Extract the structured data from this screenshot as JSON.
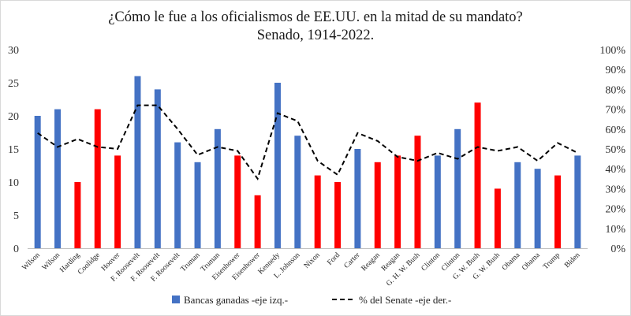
{
  "chart_data": {
    "type": "bar+line",
    "title_line1": "¿Cómo le fue a los oficialismos de EE.UU. en la mitad de su mandato?",
    "title_line2": "Senado, 1914-2022.",
    "categories": [
      "Wilson",
      "Wilson",
      "Harding",
      "Coolidge",
      "Hoover",
      "F. Roosevelt",
      "F. Roosevelt",
      "F. Roosevelt",
      "Truman",
      "Truman",
      "Eisenhower",
      "Eisenhower",
      "Kennedy",
      "L. Johnson",
      "Nixon",
      "Ford",
      "Carter",
      "Reagan",
      "Reagan",
      "G. H. W. Bush",
      "Clinton",
      "Clinton",
      "G. W. Bush",
      "G. W. Bush",
      "Obama",
      "Obama",
      "Trump",
      "Biden"
    ],
    "series": [
      {
        "name": "Bancas ganadas -eje izq.-",
        "axis": "left",
        "type": "bar",
        "values": [
          20,
          21,
          10,
          21,
          14,
          26,
          24,
          16,
          13,
          18,
          14,
          8,
          25,
          17,
          11,
          10,
          15,
          13,
          14,
          17,
          14,
          18,
          22,
          9,
          13,
          12,
          11,
          14
        ],
        "colors": [
          "#4472c4",
          "#4472c4",
          "#ff0000",
          "#ff0000",
          "#ff0000",
          "#4472c4",
          "#4472c4",
          "#4472c4",
          "#4472c4",
          "#4472c4",
          "#ff0000",
          "#ff0000",
          "#4472c4",
          "#4472c4",
          "#ff0000",
          "#ff0000",
          "#4472c4",
          "#ff0000",
          "#ff0000",
          "#ff0000",
          "#4472c4",
          "#4472c4",
          "#ff0000",
          "#ff0000",
          "#4472c4",
          "#4472c4",
          "#ff0000",
          "#4472c4"
        ]
      },
      {
        "name": "% del Senate -eje der.-",
        "axis": "right",
        "type": "line",
        "style": "dashed",
        "color": "#000000",
        "values": [
          58,
          51,
          55,
          51,
          50,
          72,
          72,
          60,
          47,
          51,
          49,
          35,
          68,
          64,
          44,
          37,
          58,
          54,
          46,
          44,
          48,
          45,
          51,
          49,
          51,
          44,
          53,
          48
        ]
      }
    ],
    "y_left": {
      "min": 0,
      "max": 30,
      "ticks": [
        "0",
        "5",
        "10",
        "15",
        "20",
        "25",
        "30"
      ]
    },
    "y_right": {
      "min": 0,
      "max": 100,
      "ticks": [
        "0%",
        "10%",
        "20%",
        "30%",
        "40%",
        "50%",
        "60%",
        "70%",
        "80%",
        "90%",
        "100%"
      ]
    },
    "grid": false,
    "legend_position": "bottom"
  }
}
